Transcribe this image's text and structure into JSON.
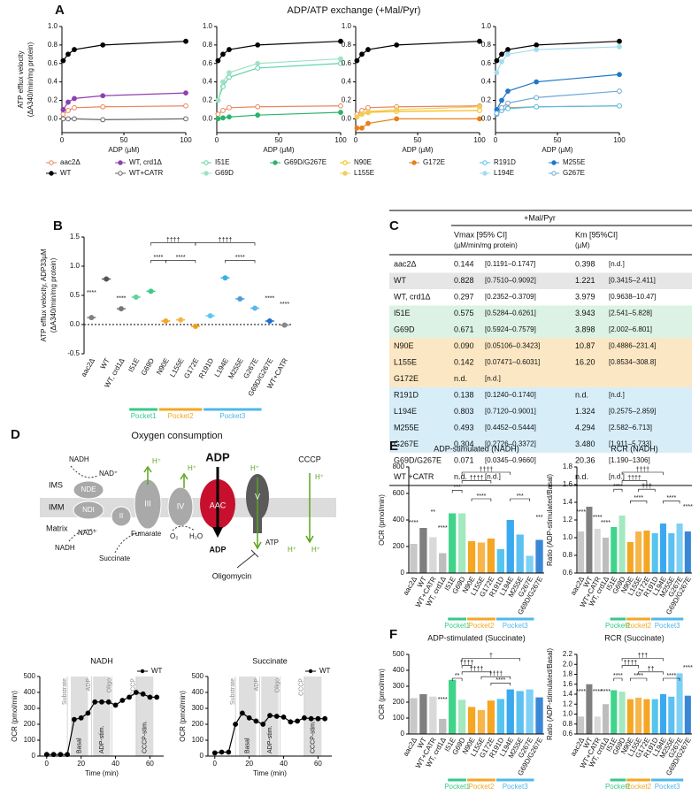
{
  "panel_a": {
    "letter": "A",
    "title": "ADP/ATP exchange (+Mal/Pyr)",
    "ylabel": [
      "ATP efflux velocity",
      "(ΔA340/min/mg protein)"
    ],
    "xlabel": "ADP (µM)",
    "x": [
      1,
      5,
      10,
      33,
      100
    ],
    "xlim": [
      0,
      100
    ],
    "xticks": [
      0,
      50,
      100
    ],
    "ylim": [
      -0.15,
      1.0
    ],
    "yticks": [
      {
        "value": 0,
        "label": "0.0"
      },
      0.2,
      0.4,
      0.6,
      0.8,
      {
        "value": 1,
        "label": "1.0"
      }
    ],
    "plots": [
      {
        "series": [
          {
            "name": "aac2Δ",
            "color": "#e8875a",
            "marker": "open",
            "values": [
              0.05,
              0.09,
              0.12,
              0.13,
              0.14
            ]
          },
          {
            "name": "WT, crd1Δ",
            "color": "#8e3fb0",
            "marker": "filled",
            "values": [
              0.1,
              0.18,
              0.22,
              0.25,
              0.28
            ]
          },
          {
            "name": "WT",
            "color": "#000000",
            "marker": "filled",
            "values": [
              0.63,
              0.7,
              0.75,
              0.8,
              0.84
            ]
          },
          {
            "name": "WT+CATR",
            "color": "#666666",
            "marker": "open",
            "values": [
              0.0,
              0.0,
              0.0,
              -0.01,
              0.0
            ]
          }
        ]
      },
      {
        "series": [
          {
            "name": "I51E",
            "color": "#5fd3a6",
            "marker": "open",
            "values": [
              0.2,
              0.35,
              0.45,
              0.55,
              0.6
            ]
          },
          {
            "name": "G69D/G267E",
            "color": "#2cb36e",
            "marker": "filled",
            "values": [
              0.0,
              0.01,
              0.02,
              0.04,
              0.07
            ]
          },
          {
            "name": "G69D",
            "color": "#9fe3c2",
            "marker": "filled",
            "values": [
              0.2,
              0.4,
              0.5,
              0.6,
              0.65
            ]
          }
        ]
      },
      {
        "series": [
          {
            "name": "N90E",
            "color": "#f5b800",
            "marker": "open",
            "values": [
              0.02,
              0.05,
              0.07,
              0.08,
              0.09
            ]
          },
          {
            "name": "G172E",
            "color": "#e8801a",
            "marker": "filled",
            "values": [
              -0.1,
              -0.1,
              -0.05,
              0.0,
              0.0
            ]
          },
          {
            "name": "L155E",
            "color": "#f2cc5a",
            "marker": "filled",
            "values": [
              0.02,
              0.05,
              0.08,
              0.1,
              0.13
            ]
          }
        ]
      },
      {
        "series": [
          {
            "name": "R191D",
            "color": "#4fc1e8",
            "marker": "open",
            "values": [
              0.05,
              0.09,
              0.11,
              0.13,
              0.14
            ]
          },
          {
            "name": "M255E",
            "color": "#1f78c8",
            "marker": "filled",
            "values": [
              0.1,
              0.2,
              0.3,
              0.4,
              0.48
            ]
          },
          {
            "name": "L194E",
            "color": "#a5dcef",
            "marker": "filled",
            "values": [
              0.5,
              0.62,
              0.7,
              0.75,
              0.78
            ]
          },
          {
            "name": "G267E",
            "color": "#6da8d6",
            "marker": "open",
            "values": [
              0.06,
              0.12,
              0.17,
              0.23,
              0.3
            ]
          }
        ]
      }
    ]
  },
  "panel_b": {
    "letter": "B",
    "ylabel": [
      "ATP efflux velocity, ADP33µM",
      "(ΔA340/min/mg protein)"
    ],
    "categories": [
      "aac2Δ",
      "WT",
      "WT, crd1Δ",
      "I51E",
      "G69D",
      "N90E",
      "L155E",
      "G172E",
      "R191D",
      "L194E",
      "M255E",
      "G267E",
      "G69D/G267E",
      "WT+CATR"
    ],
    "colors": [
      "#808080",
      "#555555",
      "#777777",
      "#5dd39e",
      "#3cc98a",
      "#f5a623",
      "#f5b342",
      "#f0a020",
      "#5bc8ef",
      "#3ab0e8",
      "#4a9fd8",
      "#5bb8e8",
      "#1f6fd1",
      "#888888"
    ],
    "values": [
      0.12,
      0.78,
      0.27,
      0.47,
      0.57,
      0.06,
      0.08,
      -0.03,
      0.15,
      0.8,
      0.44,
      0.28,
      0.06,
      -0.01
    ],
    "ylim": [
      -0.5,
      1.5
    ],
    "yticks": [
      -0.5,
      {
        "value": 0,
        "label": "0.0"
      },
      0.5,
      {
        "value": 1,
        "label": "1.0"
      },
      1.5
    ],
    "annotations": [
      "****",
      "****",
      "††††",
      "††††",
      "****",
      "****",
      "****",
      "****",
      "****"
    ],
    "pockets": [
      {
        "name": "Pocket1",
        "color": "#35c98a"
      },
      {
        "name": "Pocket2",
        "color": "#f5a623"
      },
      {
        "name": "Pocket3",
        "color": "#4fb8e8"
      }
    ]
  },
  "panel_c": {
    "letter": "C",
    "header": "+Mal/Pyr",
    "columns": [
      [
        "Vmax [95% CI]",
        "(µM/min/mg protein)"
      ],
      [
        "Km [95%CI]",
        "(µM)"
      ]
    ],
    "rows": [
      {
        "color": "#ffffff",
        "cells": [
          "aac2Δ",
          "0.144",
          "[0.1191–0.1747]",
          "0.398",
          "[n.d.]"
        ]
      },
      {
        "color": "#e6e6e6",
        "cells": [
          "WT",
          "0.828",
          "[0.7510–0.9092]",
          "1.221",
          "[0.3415–2.411]"
        ]
      },
      {
        "color": "#ffffff",
        "cells": [
          "WT, crd1Δ",
          "0.297",
          "[0.2352–0.3709]",
          "3.979",
          "[0.9638–10.47]"
        ]
      },
      {
        "color": "#dcf2e4",
        "cells": [
          "I51E",
          "0.575",
          "[0.5284–0.6261]",
          "3.943",
          "[2.541–5.828]"
        ]
      },
      {
        "color": "#dcf2e4",
        "cells": [
          "G69D",
          "0.671",
          "[0.5924–0.7579]",
          "3.898",
          "[2.002–6.801]"
        ]
      },
      {
        "color": "#fce7c4",
        "cells": [
          "N90E",
          "0.090",
          "[0.05106–0.3423]",
          "10.87",
          "[0.4886–231.4]"
        ]
      },
      {
        "color": "#fce7c4",
        "cells": [
          "L155E",
          "0.142",
          "[0.07471–0.6031]",
          "16.20",
          "[0.8534–308.8]"
        ]
      },
      {
        "color": "#fce7c4",
        "cells": [
          "G172E",
          "n.d.",
          "[n.d.]"
        ]
      },
      {
        "color": "#d7eef9",
        "cells": [
          "R191D",
          "0.138",
          "[0.1240–0.1740]",
          "n.d.",
          "[n.d.]"
        ]
      },
      {
        "color": "#d7eef9",
        "cells": [
          "L194E",
          "0.803",
          "[0.7120–0.9001]",
          "1.324",
          "[0.2575–2.859]"
        ]
      },
      {
        "color": "#d7eef9",
        "cells": [
          "M255E",
          "0.493",
          "[0.4452–0.5444]",
          "4.294",
          "[2.582–6.713]"
        ]
      },
      {
        "color": "#d7eef9",
        "cells": [
          "G267E",
          "0.304",
          "[0.2726–0.3372]",
          "3.480",
          "[1.911–5.733]"
        ]
      },
      {
        "color": "#ffffff",
        "cells": [
          "G69D/G267E",
          "0.071",
          "[0.0345–0.9660]",
          "20.36",
          "[1.190–1306]"
        ]
      },
      {
        "color": "#ffffff",
        "cells": [
          "WT +CATR",
          "n.d.",
          "[n.d.]",
          "n.d.",
          "[n.d.]"
        ]
      }
    ]
  },
  "panel_d": {
    "letter": "D",
    "title": "Oxygen consumption",
    "diagram": {
      "ims": "IMS",
      "imm": "IMM",
      "matrix": "Matrix",
      "nadh": "NADH",
      "nad": "NAD⁺",
      "nde": "NDE",
      "ndi": "NDI",
      "complex_ii": "II",
      "complex_iii": "III",
      "complex_iv": "IV",
      "aac": "AAC",
      "complex_v": "V",
      "adp": "ADP",
      "atp": "ATP",
      "cccp": "CCCP",
      "h": "H⁺",
      "succinate": "Succinate",
      "fumarate": "Fumarate",
      "o2": "O₂",
      "h2o": "H₂O",
      "oligomycin": "Oligomycin"
    },
    "traces": {
      "ylabel": "OCR (pmol/min)",
      "xlabel": "Time (min)",
      "x": [
        0,
        4,
        8,
        12,
        16,
        20,
        24,
        28,
        32,
        36,
        40,
        44,
        48,
        52,
        56,
        60,
        64
      ],
      "xlim": [
        -4,
        68
      ],
      "xticks": [
        0,
        20,
        40,
        60
      ],
      "ylim": [
        0,
        500
      ],
      "yticks": [
        0,
        100,
        200,
        300,
        400,
        500
      ],
      "phases": [
        "Substrate",
        "ADP",
        "Oligo",
        "CCCP"
      ],
      "regions": [
        "Basal",
        "ADP-stim.",
        "CCCP-stim."
      ],
      "charts": [
        {
          "title": "NADH",
          "series": [
            {
              "name": "WT",
              "color": "#000000",
              "values": [
                10,
                10,
                10,
                10,
                230,
                240,
                270,
                340,
                340,
                340,
                320,
                350,
                370,
                400,
                390,
                370,
                370
              ]
            }
          ]
        },
        {
          "title": "Succinate",
          "series": [
            {
              "name": "WT",
              "color": "#000000",
              "values": [
                20,
                25,
                25,
                200,
                270,
                240,
                220,
                200,
                255,
                250,
                245,
                215,
                220,
                240,
                235,
                235,
                235
              ]
            }
          ]
        }
      ]
    }
  },
  "panel_ef": {
    "categories": [
      "aac2Δ",
      "WT",
      "WT+CATR",
      "WT, crd1Δ",
      "I51E",
      "G69D",
      "N90E",
      "L155E",
      "G172E",
      "R191D",
      "L194E",
      "M255E",
      "G267E",
      "G69D/G267E"
    ],
    "colors": [
      "#c8c8c8",
      "#7f7f7f",
      "#d9d9d9",
      "#bdbdbd",
      "#3fd48a",
      "#a3e8bf",
      "#f5a623",
      "#f7b64c",
      "#f5a623",
      "#55c5f0",
      "#3aa9f0",
      "#5cc0f0",
      "#7fd0f5",
      "#3a87d8"
    ],
    "ratio_label": "Ratio (ADP-stimulated/Basal)",
    "ocr_label": "OCR (pmol/min)",
    "panels": [
      {
        "letter": "E",
        "charts": [
          {
            "title": "ADP-stimulated (NADH)",
            "ylim": [
              0,
              800
            ],
            "yticks": [
              0,
              200,
              400,
              600,
              800
            ],
            "values": [
              220,
              340,
              270,
              150,
              450,
              450,
              240,
              230,
              260,
              180,
              400,
              290,
              130,
              250
            ],
            "annotations": [
              "****",
              "**",
              "****",
              "††††",
              "††††",
              "***",
              "****",
              "***",
              "***"
            ]
          },
          {
            "title": "RCR (NADH)",
            "ylim": [
              0.6,
              1.8
            ],
            "yticks": [
              0.6,
              0.8,
              {
                "value": 1,
                "label": "1.0"
              },
              1.2,
              1.4,
              1.6,
              1.8
            ],
            "values": [
              1.07,
              1.35,
              1.1,
              1.0,
              1.12,
              1.25,
              0.95,
              1.07,
              1.08,
              1.05,
              1.16,
              1.05,
              1.16,
              1.07
            ],
            "annotations": [
              "****",
              "****",
              "****",
              "††††",
              "††††",
              "†††",
              "****",
              "****",
              "****",
              "****"
            ]
          }
        ]
      },
      {
        "letter": "F",
        "charts": [
          {
            "title": "ADP-stimulated (Succinate)",
            "ylim": [
              0,
              500
            ],
            "yticks": [
              0,
              100,
              200,
              300,
              400,
              500
            ],
            "values": [
              225,
              250,
              235,
              95,
              340,
              215,
              170,
              150,
              210,
              220,
              280,
              270,
              280,
              230
            ],
            "annotations": [
              "****",
              "**",
              "††††",
              "††††",
              "†",
              "****",
              "††††"
            ]
          },
          {
            "title": "RCR (Succinate)",
            "ylim": [
              0.6,
              2.2
            ],
            "yticks": [
              0.6,
              0.8,
              {
                "value": 1,
                "label": "1.0"
              },
              1.2,
              1.4,
              1.6,
              1.8,
              {
                "value": 2,
                "label": "2.0"
              },
              2.2
            ],
            "values": [
              0.95,
              1.6,
              0.95,
              1.2,
              1.48,
              1.45,
              1.3,
              1.33,
              1.3,
              1.3,
              1.4,
              1.35,
              1.82,
              1.37
            ],
            "annotations": [
              "****",
              "****",
              "****",
              "††††",
              "†††",
              "††",
              "****",
              "****",
              "****",
              "****"
            ]
          }
        ]
      }
    ]
  }
}
